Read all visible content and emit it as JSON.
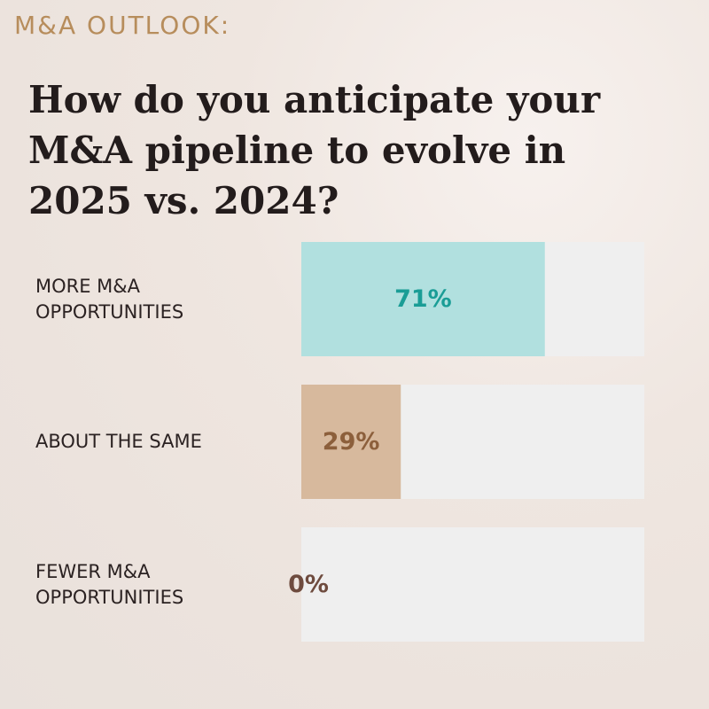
{
  "chart_data": {
    "type": "hbar",
    "supertitle": "M&A OUTLOOK:",
    "title": "How do you anticipate your M&A pipeline to evolve in 2025 vs. 2024?",
    "categories": [
      "MORE M&A OPPORTUNITIES",
      "ABOUT THE SAME",
      "FEWER M&A OPPORTUNITIES"
    ],
    "values": [
      71,
      29,
      0
    ],
    "value_labels": [
      "71%",
      "29%",
      "0%"
    ],
    "colors": [
      "#b1e0df",
      "#d7b99d",
      "#c9a68a"
    ],
    "label_colors": [
      "#1a9d96",
      "#8c5f3b",
      "#6e4b3e"
    ]
  }
}
